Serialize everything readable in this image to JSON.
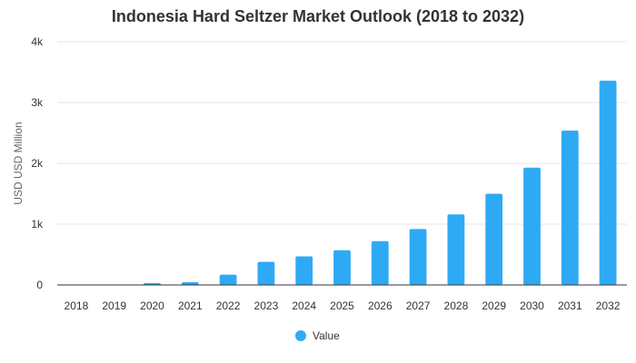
{
  "chart_data": {
    "type": "bar",
    "title": "Indonesia Hard Seltzer Market Outlook (2018 to 2032)",
    "xlabel": "",
    "ylabel": "USD USD Million",
    "categories": [
      "2018",
      "2019",
      "2020",
      "2021",
      "2022",
      "2023",
      "2024",
      "2025",
      "2026",
      "2027",
      "2028",
      "2029",
      "2030",
      "2031",
      "2032"
    ],
    "series": [
      {
        "name": "Value",
        "color": "#2eaaf5",
        "values": [
          2,
          4,
          30,
          45,
          170,
          380,
          470,
          570,
          720,
          920,
          1160,
          1500,
          1930,
          2540,
          3360
        ]
      }
    ],
    "ylim": [
      0,
      4000
    ],
    "yticks": [
      0,
      1000,
      2000,
      3000,
      4000
    ],
    "ytick_labels": [
      "0",
      "1k",
      "2k",
      "3k",
      "4k"
    ],
    "grid": true,
    "legend_position": "bottom"
  }
}
